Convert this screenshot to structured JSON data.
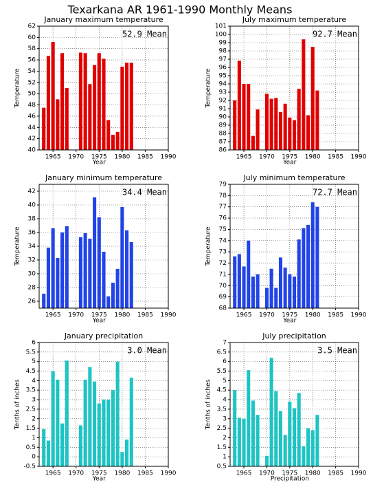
{
  "title": "Texarkana AR  1961-1990 Monthly Means",
  "chart_data": [
    {
      "type": "bar",
      "title": "January maximum temperature",
      "annotation": "52.9 Mean",
      "xlabel": "Year",
      "ylabel": "Temperature",
      "x": [
        1963,
        1964,
        1965,
        1966,
        1967,
        1968,
        1971,
        1972,
        1973,
        1974,
        1975,
        1976,
        1977,
        1978,
        1979,
        1980,
        1981,
        1982
      ],
      "values": [
        47.5,
        56.7,
        59.2,
        49.0,
        57.2,
        51.0,
        57.3,
        57.2,
        51.7,
        55.1,
        57.2,
        56.2,
        45.3,
        42.7,
        43.2,
        54.8,
        55.5,
        55.5
      ],
      "color": "#e00000",
      "xlim": [
        1962,
        1990
      ],
      "xticks": [
        1965,
        1970,
        1975,
        1980,
        1985,
        1990
      ],
      "ylim": [
        40,
        62
      ],
      "yticks": [
        40,
        42,
        44,
        46,
        48,
        50,
        52,
        54,
        56,
        58,
        60,
        62
      ],
      "grid": true
    },
    {
      "type": "bar",
      "title": "July maximum temperature",
      "annotation": "92.7 Mean",
      "xlabel": "Year",
      "ylabel": "Temperature",
      "x": [
        1963,
        1964,
        1965,
        1966,
        1967,
        1968,
        1970,
        1971,
        1972,
        1973,
        1974,
        1975,
        1976,
        1977,
        1978,
        1979,
        1980,
        1981
      ],
      "values": [
        92.0,
        96.8,
        94.0,
        94.0,
        87.7,
        90.9,
        92.8,
        92.2,
        92.3,
        90.6,
        91.6,
        89.9,
        89.6,
        93.4,
        99.4,
        90.2,
        98.5,
        93.2
      ],
      "color": "#e00000",
      "xlim": [
        1962,
        1990
      ],
      "xticks": [
        1965,
        1970,
        1975,
        1980,
        1985,
        1990
      ],
      "ylim": [
        86,
        101
      ],
      "yticks": [
        86,
        87,
        88,
        89,
        90,
        91,
        92,
        93,
        94,
        95,
        96,
        97,
        98,
        99,
        100,
        101
      ],
      "grid": true
    },
    {
      "type": "bar",
      "title": "January minimum temperature",
      "annotation": "34.4 Mean",
      "xlabel": "Year",
      "ylabel": "Temperature",
      "x": [
        1963,
        1964,
        1965,
        1966,
        1967,
        1968,
        1971,
        1972,
        1973,
        1974,
        1975,
        1976,
        1977,
        1978,
        1979,
        1980,
        1981,
        1982
      ],
      "values": [
        27.1,
        33.8,
        36.6,
        32.3,
        36.0,
        36.9,
        35.3,
        35.9,
        35.1,
        41.1,
        38.2,
        33.2,
        26.7,
        28.7,
        30.7,
        39.7,
        36.3,
        34.6
      ],
      "color": "#2244e6",
      "xlim": [
        1962,
        1990
      ],
      "xticks": [
        1965,
        1970,
        1975,
        1980,
        1985,
        1990
      ],
      "ylim": [
        25,
        43
      ],
      "yticks": [
        26,
        28,
        30,
        32,
        34,
        36,
        38,
        40,
        42
      ],
      "grid": true
    },
    {
      "type": "bar",
      "title": "July minimum temperature",
      "annotation": "72.7 Mean",
      "xlabel": "Year",
      "ylabel": "Temperature",
      "x": [
        1963,
        1964,
        1965,
        1966,
        1967,
        1968,
        1970,
        1971,
        1972,
        1973,
        1974,
        1975,
        1976,
        1977,
        1978,
        1979,
        1980,
        1981
      ],
      "values": [
        72.6,
        72.8,
        71.7,
        74.0,
        70.8,
        71.0,
        69.8,
        71.5,
        69.8,
        72.5,
        71.6,
        71.0,
        70.8,
        74.1,
        75.1,
        75.4,
        77.4,
        77.0
      ],
      "color": "#2244e6",
      "xlim": [
        1962,
        1990
      ],
      "xticks": [
        1965,
        1970,
        1975,
        1980,
        1985,
        1990
      ],
      "ylim": [
        68,
        79
      ],
      "yticks": [
        68,
        69,
        70,
        71,
        72,
        73,
        74,
        75,
        76,
        77,
        78,
        79
      ],
      "grid": true
    },
    {
      "type": "bar",
      "title": "January precipitation",
      "annotation": "3.0 Mean",
      "xlabel": "Year",
      "ylabel": "Tenths of inches",
      "x": [
        1963,
        1964,
        1965,
        1966,
        1967,
        1968,
        1971,
        1972,
        1973,
        1974,
        1975,
        1976,
        1977,
        1978,
        1979,
        1980,
        1981,
        1982
      ],
      "values": [
        1.45,
        0.85,
        4.5,
        4.05,
        1.75,
        5.05,
        1.65,
        4.05,
        4.7,
        3.95,
        2.8,
        3.0,
        3.0,
        3.5,
        5.0,
        0.25,
        0.9,
        4.15
      ],
      "color": "#1ec4c4",
      "xlim": [
        1962,
        1990
      ],
      "xticks": [
        1965,
        1970,
        1975,
        1980,
        1985,
        1990
      ],
      "ylim": [
        -0.5,
        6
      ],
      "yticks": [
        -0.5,
        0,
        0.5,
        1,
        1.5,
        2,
        2.5,
        3,
        3.5,
        4,
        4.5,
        5,
        5.5,
        6
      ],
      "grid": true
    },
    {
      "type": "bar",
      "title": "July precipitation",
      "annotation": "3.5 Mean",
      "xlabel": "Precipitation",
      "ylabel": "Tenths of inches",
      "x": [
        1963,
        1964,
        1965,
        1966,
        1967,
        1968,
        1970,
        1971,
        1972,
        1973,
        1974,
        1975,
        1976,
        1977,
        1978,
        1979,
        1980,
        1981
      ],
      "values": [
        4.5,
        3.05,
        3.0,
        5.55,
        3.95,
        3.2,
        1.05,
        6.2,
        4.45,
        3.4,
        2.15,
        3.9,
        3.55,
        4.35,
        1.55,
        2.5,
        2.4,
        3.2
      ],
      "color": "#1ec4c4",
      "xlim": [
        1962,
        1990
      ],
      "xticks": [
        1965,
        1970,
        1975,
        1980,
        1985,
        1990
      ],
      "ylim": [
        0.5,
        7
      ],
      "yticks": [
        0.5,
        1,
        1.5,
        2,
        2.5,
        3,
        3.5,
        4,
        4.5,
        5,
        5.5,
        6,
        6.5,
        7
      ],
      "grid": true
    }
  ]
}
